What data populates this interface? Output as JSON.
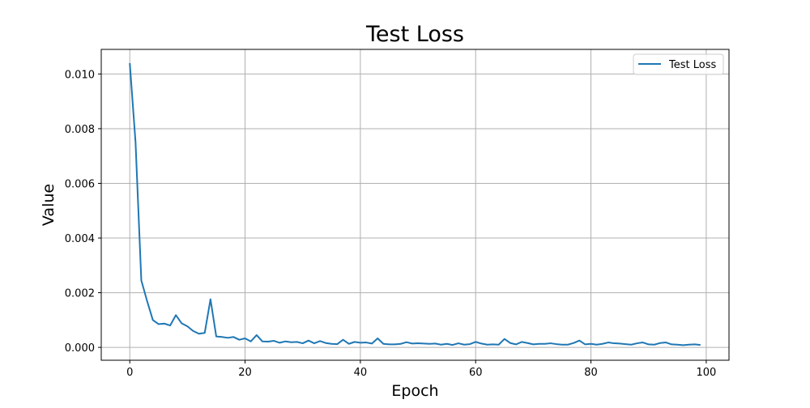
{
  "chart_data": {
    "type": "line",
    "title": "Test Loss",
    "xlabel": "Epoch",
    "ylabel": "Value",
    "xlim": [
      -4.95,
      103.95
    ],
    "ylim": [
      -0.00047,
      0.0109
    ],
    "grid": true,
    "legend_position": "top-right",
    "x_ticks": [
      0,
      20,
      40,
      60,
      80,
      100
    ],
    "x_tick_labels": [
      "0",
      "20",
      "40",
      "60",
      "80",
      "100"
    ],
    "y_ticks": [
      0,
      0.002,
      0.004,
      0.006,
      0.008,
      0.01
    ],
    "y_tick_labels": [
      "0.000",
      "0.002",
      "0.004",
      "0.006",
      "0.008",
      "0.010"
    ],
    "series": [
      {
        "name": "Test Loss",
        "color": "#1f77b4",
        "x": [
          0,
          1,
          2,
          3,
          4,
          5,
          6,
          7,
          8,
          9,
          10,
          11,
          12,
          13,
          14,
          15,
          16,
          17,
          18,
          19,
          20,
          21,
          22,
          23,
          24,
          25,
          26,
          27,
          28,
          29,
          30,
          31,
          32,
          33,
          34,
          35,
          36,
          37,
          38,
          39,
          40,
          41,
          42,
          43,
          44,
          45,
          46,
          47,
          48,
          49,
          50,
          51,
          52,
          53,
          54,
          55,
          56,
          57,
          58,
          59,
          60,
          61,
          62,
          63,
          64,
          65,
          66,
          67,
          68,
          69,
          70,
          71,
          72,
          73,
          74,
          75,
          76,
          77,
          78,
          79,
          80,
          81,
          82,
          83,
          84,
          85,
          86,
          87,
          88,
          89,
          90,
          91,
          92,
          93,
          94,
          95,
          96,
          97,
          98,
          99
        ],
        "y": [
          0.0104,
          0.0075,
          0.00245,
          0.0017,
          0.001,
          0.00085,
          0.00087,
          0.0008,
          0.00118,
          0.00088,
          0.00077,
          0.0006,
          0.0005,
          0.00053,
          0.00176,
          0.0004,
          0.00038,
          0.00035,
          0.00038,
          0.00028,
          0.00033,
          0.00022,
          0.00045,
          0.00022,
          0.00021,
          0.00024,
          0.00017,
          0.00022,
          0.00019,
          0.0002,
          0.00015,
          0.00025,
          0.00015,
          0.00023,
          0.00016,
          0.00013,
          0.00012,
          0.00028,
          0.00013,
          0.0002,
          0.00017,
          0.00018,
          0.00014,
          0.00033,
          0.00013,
          0.00011,
          0.00011,
          0.00013,
          0.00019,
          0.00014,
          0.00015,
          0.00014,
          0.00013,
          0.00014,
          0.0001,
          0.00013,
          9e-05,
          0.00015,
          0.0001,
          0.00012,
          0.0002,
          0.00014,
          0.0001,
          0.00011,
          0.0001,
          0.00031,
          0.00016,
          0.00011,
          0.0002,
          0.00016,
          0.00011,
          0.00013,
          0.00013,
          0.00015,
          0.00012,
          0.0001,
          0.0001,
          0.00016,
          0.00025,
          0.00011,
          0.00013,
          0.0001,
          0.00013,
          0.00018,
          0.00015,
          0.00014,
          0.00012,
          0.0001,
          0.00015,
          0.00018,
          0.00011,
          0.0001,
          0.00016,
          0.00018,
          0.00011,
          0.0001,
          8e-05,
          0.0001,
          0.00011,
          9e-05
        ]
      }
    ]
  }
}
